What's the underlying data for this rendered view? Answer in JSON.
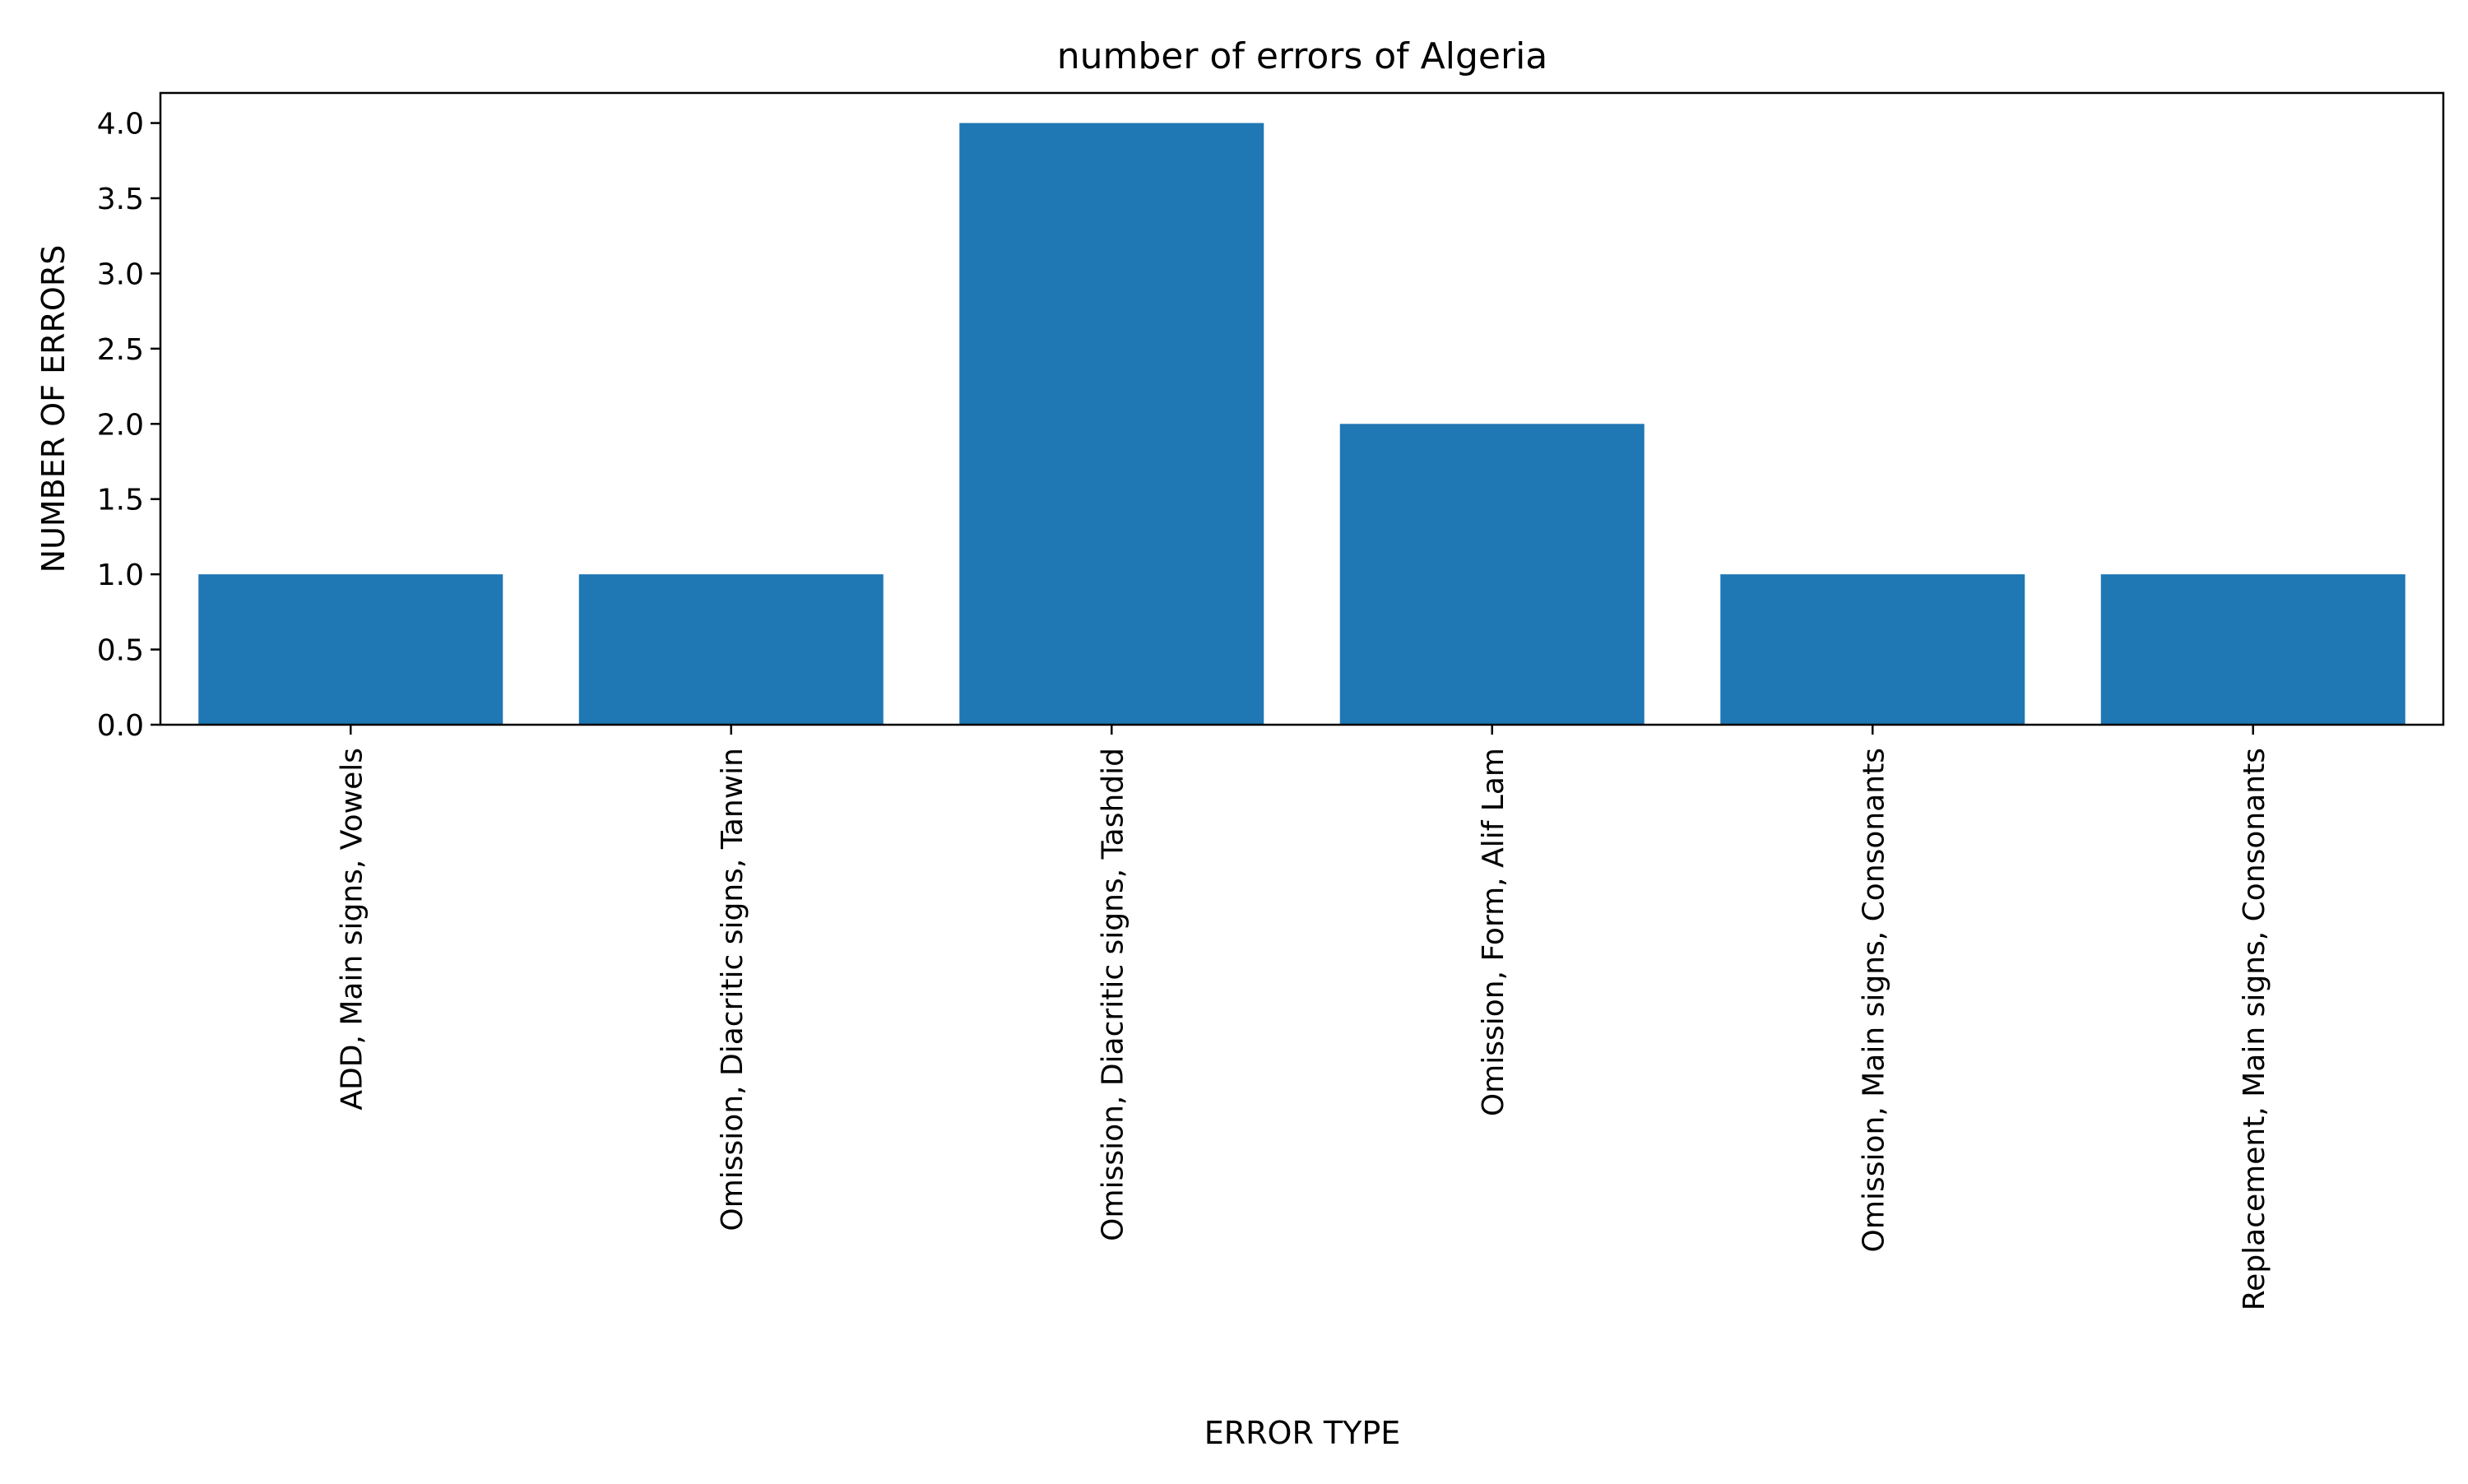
{
  "chart_data": {
    "type": "bar",
    "title": "number of errors of Algeria",
    "xlabel": "ERROR TYPE",
    "ylabel": "NUMBER OF ERRORS",
    "categories": [
      "ADD, Main signs, Vowels",
      "Omission, Diacritic signs, Tanwin",
      "Omission, Diacritic signs, Tashdid",
      "Omission, Form, Alif Lam",
      "Omission, Main signs, Consonants",
      "Replacement, Main signs, Consonants"
    ],
    "values": [
      1,
      1,
      4,
      2,
      1,
      1
    ],
    "ylim": [
      0,
      4.2
    ],
    "yticks": [
      "0.0",
      "0.5",
      "1.0",
      "1.5",
      "2.0",
      "2.5",
      "3.0",
      "3.5",
      "4.0"
    ],
    "bar_color": "#1f77b4",
    "grid": false,
    "legend": null
  }
}
